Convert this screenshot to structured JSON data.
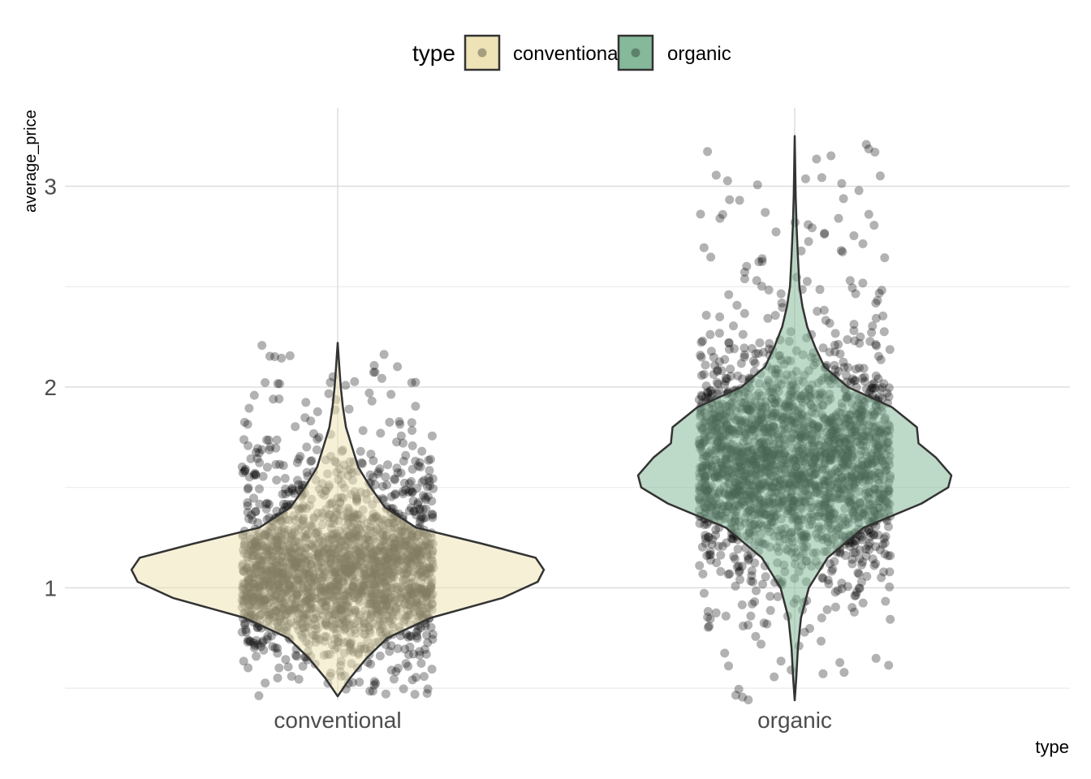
{
  "chart_data": {
    "type": "violin",
    "xlabel": "type",
    "ylabel": "average_price",
    "categories": [
      "conventional",
      "organic"
    ],
    "ylim": [
      0.44,
      3.39
    ],
    "yticks": [
      1,
      2,
      3
    ],
    "grid": true,
    "legend": {
      "title": "type",
      "position": "top",
      "entries": [
        {
          "label": "conventional",
          "color": "#EEE3B7"
        },
        {
          "label": "organic",
          "color": "#86B999"
        }
      ]
    },
    "series": [
      {
        "name": "conventional",
        "fill": "#EEE3B7",
        "min": 0.46,
        "max": 2.22,
        "median": 1.09,
        "jitter_range": [
          0.46,
          2.22
        ],
        "density": [
          [
            0.46,
            0.0
          ],
          [
            0.55,
            0.06
          ],
          [
            0.65,
            0.14
          ],
          [
            0.75,
            0.24
          ],
          [
            0.85,
            0.45
          ],
          [
            0.95,
            0.8
          ],
          [
            1.03,
            0.97
          ],
          [
            1.09,
            1.0
          ],
          [
            1.15,
            0.96
          ],
          [
            1.22,
            0.7
          ],
          [
            1.3,
            0.38
          ],
          [
            1.4,
            0.23
          ],
          [
            1.5,
            0.16
          ],
          [
            1.6,
            0.1
          ],
          [
            1.7,
            0.07
          ],
          [
            1.8,
            0.04
          ],
          [
            1.9,
            0.025
          ],
          [
            2.0,
            0.015
          ],
          [
            2.1,
            0.008
          ],
          [
            2.22,
            0.0
          ]
        ]
      },
      {
        "name": "organic",
        "fill": "#86B999",
        "min": 0.44,
        "max": 3.25,
        "median": 1.56,
        "jitter_range": [
          0.44,
          3.25
        ],
        "density": [
          [
            0.44,
            0.0
          ],
          [
            0.55,
            0.01
          ],
          [
            0.7,
            0.02
          ],
          [
            0.85,
            0.04
          ],
          [
            1.0,
            0.09
          ],
          [
            1.15,
            0.21
          ],
          [
            1.3,
            0.44
          ],
          [
            1.42,
            0.81
          ],
          [
            1.5,
            0.98
          ],
          [
            1.56,
            1.0
          ],
          [
            1.65,
            0.9
          ],
          [
            1.72,
            0.79
          ],
          [
            1.8,
            0.78
          ],
          [
            1.9,
            0.62
          ],
          [
            2.0,
            0.34
          ],
          [
            2.1,
            0.19
          ],
          [
            2.2,
            0.13
          ],
          [
            2.3,
            0.08
          ],
          [
            2.4,
            0.05
          ],
          [
            2.5,
            0.03
          ],
          [
            2.65,
            0.02
          ],
          [
            2.8,
            0.012
          ],
          [
            2.95,
            0.006
          ],
          [
            3.1,
            0.003
          ],
          [
            3.25,
            0.0
          ]
        ]
      }
    ]
  }
}
